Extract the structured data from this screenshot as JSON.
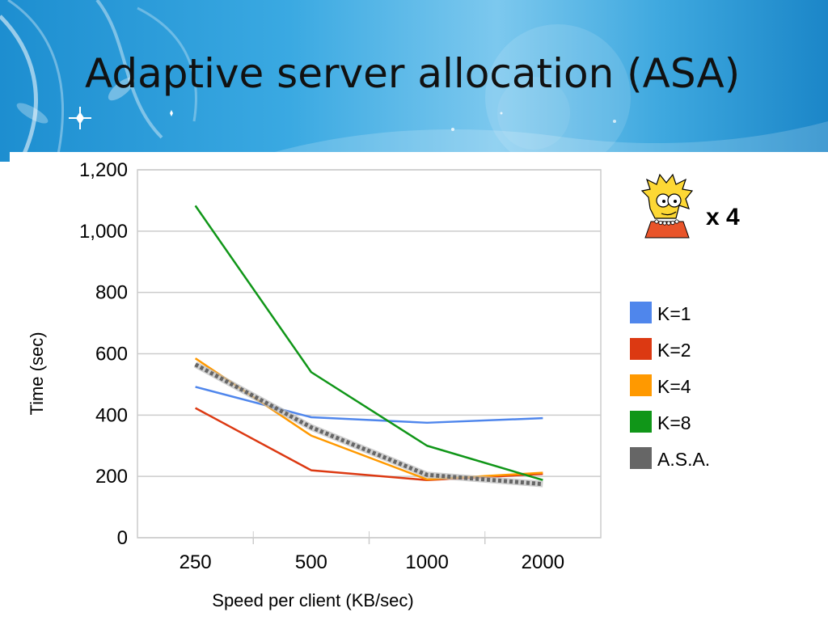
{
  "slide": {
    "title": "Adaptive server allocation (ASA)",
    "multiplier_label": "x 4",
    "mascot_icon": "cartoon-character-icon"
  },
  "colors": {
    "banner": "#2a9ad8",
    "k1": "#4f86ec",
    "k2": "#dc3912",
    "k4": "#ff9900",
    "k8": "#109618",
    "asa": "#666666"
  },
  "chart_data": {
    "type": "line",
    "xlabel": "Speed per client (KB/sec)",
    "ylabel": "Time (sec)",
    "categories": [
      "250",
      "500",
      "1000",
      "2000"
    ],
    "ylim": [
      0,
      1200
    ],
    "yticks": [
      "0",
      "200",
      "400",
      "600",
      "800",
      "1,000",
      "1,200"
    ],
    "grid": true,
    "legend_position": "right",
    "series": [
      {
        "name": "K=1",
        "values": [
          492,
          393,
          375,
          390
        ],
        "color": "#4f86ec"
      },
      {
        "name": "K=2",
        "values": [
          423,
          220,
          188,
          208
        ],
        "color": "#dc3912"
      },
      {
        "name": "K=4",
        "values": [
          585,
          333,
          190,
          212
        ],
        "color": "#ff9900"
      },
      {
        "name": "K=8",
        "values": [
          1083,
          540,
          300,
          188
        ],
        "color": "#109618"
      },
      {
        "name": "A.S.A.",
        "values": [
          565,
          360,
          205,
          175
        ],
        "color": "#666666"
      }
    ]
  }
}
